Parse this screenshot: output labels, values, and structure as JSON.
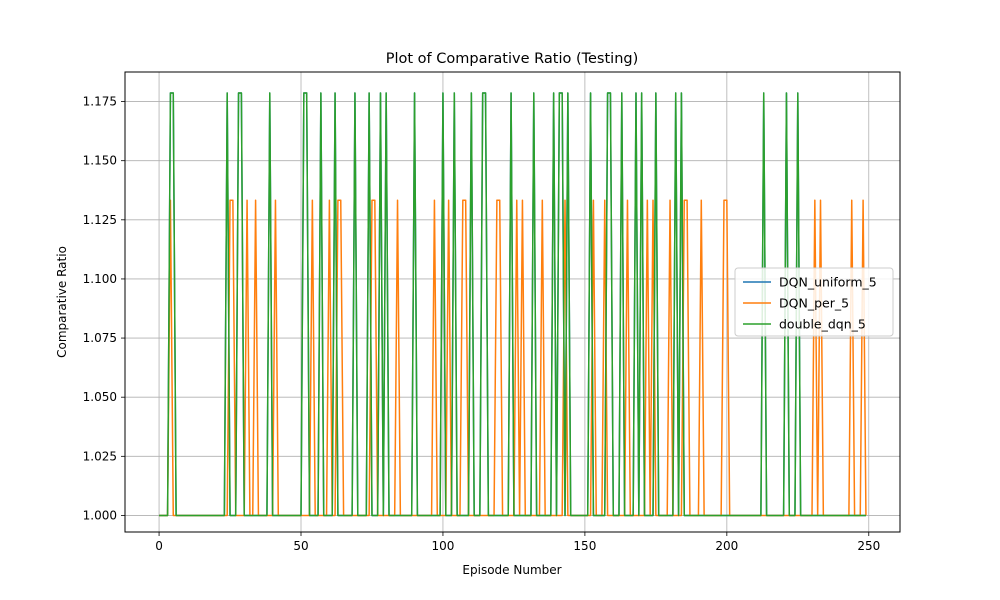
{
  "chart_data": {
    "type": "line",
    "title": "Plot of Comparative Ratio (Testing)",
    "xlabel": "Episode Number",
    "ylabel": "Comparative Ratio",
    "xlim": [
      -12,
      261
    ],
    "ylim": [
      0.993,
      1.1875
    ],
    "xticks": [
      0,
      50,
      100,
      150,
      200,
      250
    ],
    "yticks": [
      1.0,
      1.025,
      1.05,
      1.075,
      1.1,
      1.125,
      1.15,
      1.175
    ],
    "ytick_labels": [
      "1.000",
      "1.025",
      "1.050",
      "1.075",
      "1.100",
      "1.125",
      "1.150",
      "1.175"
    ],
    "grid": true,
    "legend_position": "center-right",
    "x_range": [
      0,
      249
    ],
    "series": [
      {
        "name": "DQN_uniform_5",
        "color": "#1f77b4",
        "peak_episodes": [
          4,
          5,
          24,
          28,
          29,
          39,
          51,
          52,
          57,
          62,
          69,
          74,
          78,
          80,
          90,
          100,
          104,
          110,
          114,
          115,
          124,
          132,
          139,
          141,
          142,
          144,
          152,
          158,
          159,
          163,
          168,
          170,
          175,
          182,
          184,
          213,
          221,
          225
        ],
        "peak_value": 1.1786,
        "base_value": 1.0
      },
      {
        "name": "DQN_per_5",
        "color": "#ff7f0e",
        "peak_episodes": [
          4,
          25,
          26,
          31,
          34,
          41,
          54,
          60,
          63,
          64,
          75,
          76,
          84,
          97,
          102,
          107,
          108,
          119,
          120,
          126,
          128,
          135,
          143,
          153,
          157,
          165,
          172,
          174,
          180,
          185,
          186,
          191,
          199,
          200,
          231,
          233,
          244,
          248
        ],
        "peak_value": 1.1333,
        "base_value": 1.0
      },
      {
        "name": "double_dqn_5",
        "color": "#2ca02c",
        "peak_episodes": [
          4,
          5,
          24,
          28,
          29,
          39,
          51,
          52,
          57,
          62,
          69,
          74,
          78,
          80,
          90,
          100,
          104,
          110,
          114,
          115,
          124,
          132,
          139,
          141,
          142,
          144,
          152,
          158,
          159,
          163,
          168,
          170,
          175,
          182,
          184,
          213,
          221,
          225
        ],
        "peak_value": 1.1786,
        "base_value": 1.0
      }
    ]
  }
}
